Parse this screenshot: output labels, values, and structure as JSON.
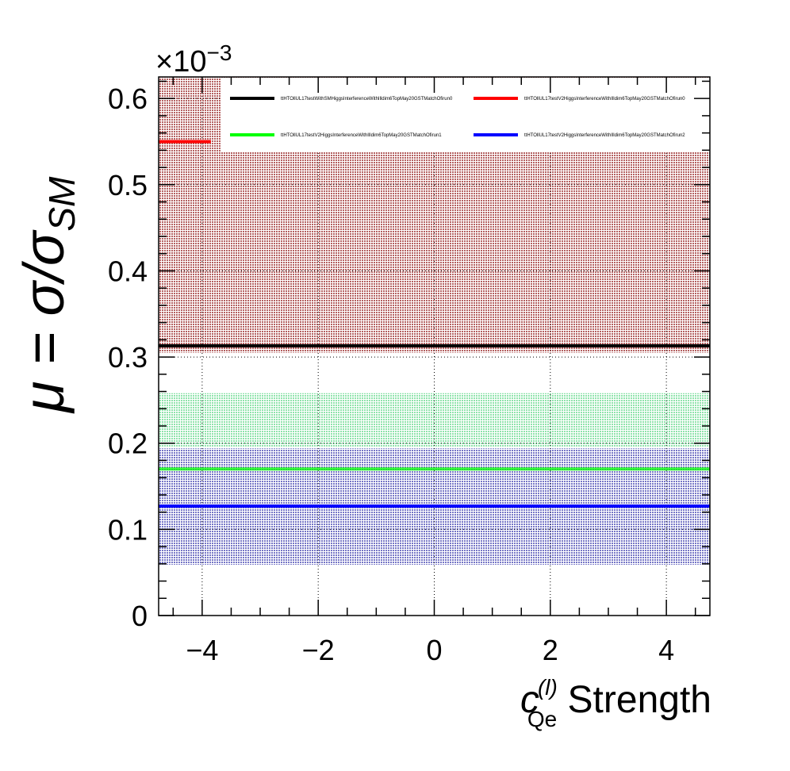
{
  "chart_data": {
    "type": "line",
    "title": "",
    "xlabel_main": "c",
    "xlabel_sup": "(l)",
    "xlabel_sub": "Qe",
    "xlabel_rest": " Strength",
    "ylabel_prefix": "μ = σ/σ",
    "ylabel_sub": "SM",
    "y_multiplier": "×10",
    "y_multiplier_exp": "−3",
    "xlim": [
      -4.75,
      4.75
    ],
    "ylim": [
      0,
      0.000625
    ],
    "x_ticks": [
      -4,
      -2,
      0,
      2,
      4
    ],
    "x_tick_labels": [
      "−4",
      "−2",
      "0",
      "2",
      "4"
    ],
    "y_ticks": [
      0,
      0.0001,
      0.0002,
      0.0003,
      0.0004,
      0.0005,
      0.0006
    ],
    "y_tick_labels": [
      "0",
      "0.1",
      "0.2",
      "0.3",
      "0.4",
      "0.5",
      "0.6"
    ],
    "grid": true,
    "legend_position": "top",
    "series": [
      {
        "name": "ttHTOllUL17testWithSMHiggsInterferenceWithIlldim6TopMay20GSTMatchOfirun0",
        "color": "#000000",
        "band_color": "#8b1a1a",
        "x": [
          -4.75,
          4.75
        ],
        "y": [
          0.000313,
          0.000313
        ],
        "band_low": [
          0.000305,
          0.000305
        ],
        "band_high": [
          0.000625,
          0.000625
        ]
      },
      {
        "name": "ttHTOllUL17testV2HiggsInterferenceWithIlldim6TopMay20GSTMatchOfirun0",
        "color": "#ff0000",
        "band_color": "#c03030",
        "x": [
          -4.75,
          -3.85
        ],
        "y": [
          0.00055,
          0.00055
        ],
        "band_low": [
          0.00054,
          0.00054
        ],
        "band_high": [
          0.000625,
          0.000625
        ]
      },
      {
        "name": "ttHTOllUL17testV2HiggsInterferenceWithIlldim6TopMay20GSTMatchOfirun1",
        "color": "#00ff00",
        "band_color": "#2ecc71",
        "x": [
          -4.75,
          4.75
        ],
        "y": [
          0.00017,
          0.00017
        ],
        "band_low": [
          0.000195,
          0.000195
        ],
        "band_high": [
          0.000258,
          0.000258
        ]
      },
      {
        "name": "ttHTOllUL17testV2HiggsInterferenceWithIlldim6TopMay20GSTMatchOfirun2",
        "color": "#0000ff",
        "band_color": "#1a1aa8",
        "x": [
          -4.75,
          4.75
        ],
        "y": [
          0.000127,
          0.000127
        ],
        "band_low": [
          5.9e-05,
          5.9e-05
        ],
        "band_high": [
          0.000194,
          0.000194
        ]
      }
    ]
  }
}
